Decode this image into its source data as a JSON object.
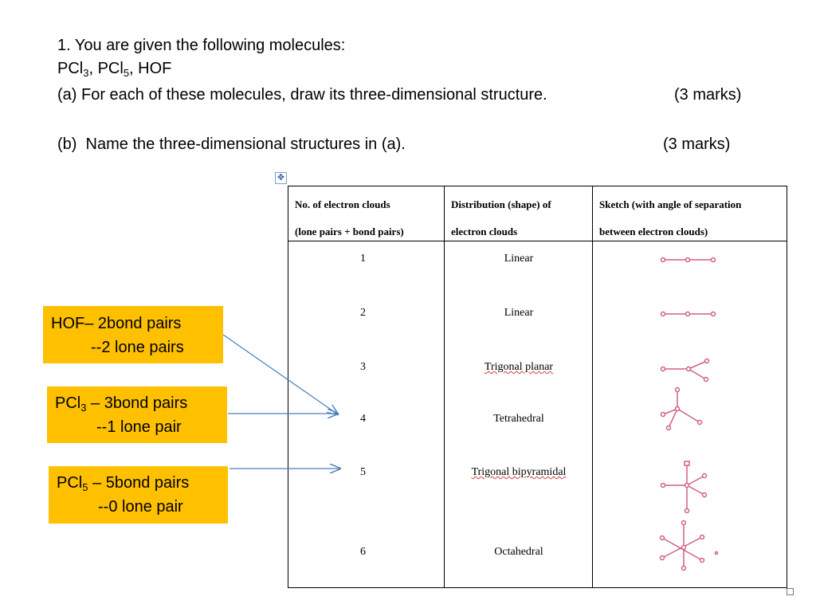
{
  "question": {
    "line1": "1. You are given the following molecules:",
    "line2": {
      "a": "PCl",
      "a_sub": "3",
      "b": ", PCl",
      "b_sub": "5",
      "c": ", HOF"
    },
    "part_a": "(a) For each of these molecules, draw its three-dimensional structure.",
    "part_a_marks": "(3 marks)",
    "part_b": "(b)  Name the three-dimensional structures in (a).",
    "part_b_marks": "(3 marks)"
  },
  "table": {
    "headers": [
      {
        "line1": "No. of electron clouds",
        "line2": "(lone pairs + bond pairs)"
      },
      {
        "line1": "Distribution (shape) of",
        "line2": "electron clouds"
      },
      {
        "line1": "Sketch (with angle of separation",
        "line2": "between electron clouds)"
      }
    ],
    "rows": [
      {
        "clouds": "1",
        "shape": "Linear",
        "sketch_icon": "linear-sketch-icon"
      },
      {
        "clouds": "2",
        "shape": "Linear",
        "sketch_icon": "linear-sketch-icon"
      },
      {
        "clouds": "3",
        "shape": "Trigonal planar",
        "sketch_icon": "trigonal-planar-sketch-icon"
      },
      {
        "clouds": "4",
        "shape": "Tetrahedral",
        "sketch_icon": "tetrahedral-sketch-icon"
      },
      {
        "clouds": "5",
        "shape": "Trigonal bipyramidal",
        "sketch_icon": "trigonal-bipyramidal-sketch-icon"
      },
      {
        "clouds": "6",
        "shape": "Octahedral",
        "sketch_icon": "octahedral-sketch-icon"
      }
    ]
  },
  "callouts": [
    {
      "molecule": "HOF",
      "sub": "",
      "bond_text": "– 2bond pairs",
      "lone_text": "--2 lone pairs"
    },
    {
      "molecule": "PCl",
      "sub": "3",
      "bond_text": " – 3bond pairs",
      "lone_text": "--1 lone pair"
    },
    {
      "molecule": "PCl",
      "sub": "5",
      "bond_text": " – 5bond pairs",
      "lone_text": "--0 lone pair"
    }
  ],
  "colors": {
    "callout_fill": "#ffc000",
    "arrow": "#4a7ebb",
    "sketch": "#d06080"
  }
}
